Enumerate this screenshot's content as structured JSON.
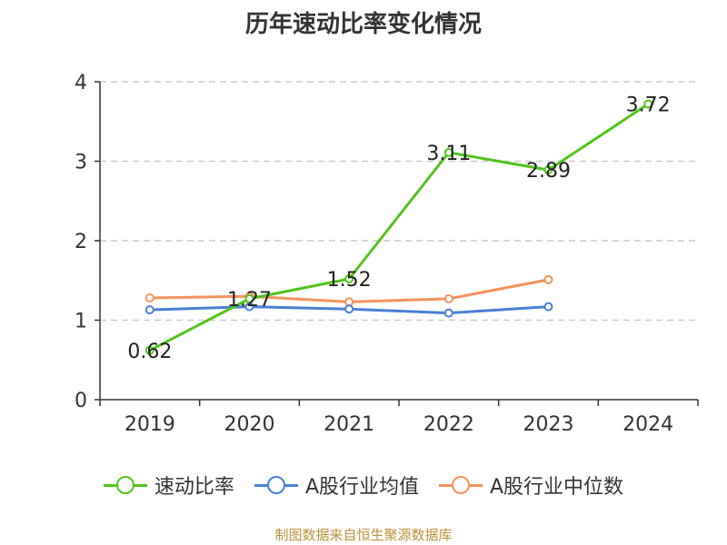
{
  "title": "历年速动比率变化情况",
  "source": "制图数据来自恒生聚源数据库",
  "chart_data": {
    "type": "line",
    "title": "历年速动比率变化情况",
    "categories": [
      "2019",
      "2020",
      "2021",
      "2022",
      "2023",
      "2024"
    ],
    "ylim": [
      0,
      4
    ],
    "yticks": [
      0,
      1,
      2,
      3,
      4
    ],
    "grid": true,
    "legend_position": "bottom",
    "series": [
      {
        "name": "速动比率",
        "color": "#52c41a",
        "values": [
          0.62,
          1.27,
          1.52,
          3.11,
          2.89,
          3.72
        ],
        "labels": [
          "0.62",
          "1.27",
          "1.52",
          "3.11",
          "2.89",
          "3.72"
        ]
      },
      {
        "name": "A股行业均值",
        "color": "#4a7fd6",
        "values": [
          1.13,
          1.17,
          1.14,
          1.09,
          1.17,
          null
        ]
      },
      {
        "name": "A股行业中位数",
        "color": "#f4925e",
        "values": [
          1.28,
          1.3,
          1.23,
          1.27,
          1.51,
          null
        ]
      }
    ]
  }
}
